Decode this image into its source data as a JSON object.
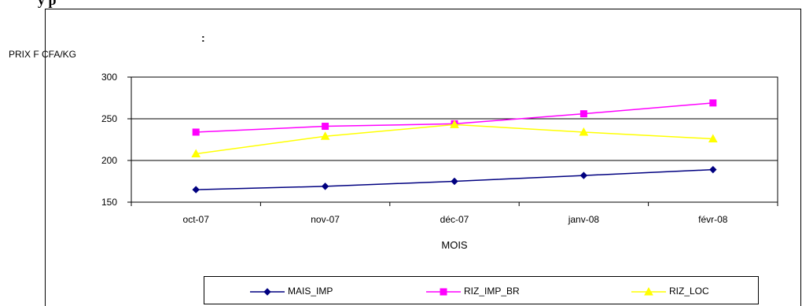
{
  "header": {
    "title_fragment": "y  p",
    "colon": ":"
  },
  "chart_data": {
    "type": "line",
    "categories": [
      "oct-07",
      "nov-07",
      "déc-07",
      "janv-08",
      "févr-08"
    ],
    "ylabel": "PRIX F CFA/KG",
    "xlabel": "MOIS",
    "ylim": [
      150,
      300
    ],
    "yticks": [
      "150",
      "200",
      "250",
      "300"
    ],
    "grid": true,
    "legend_position": "bottom",
    "series": [
      {
        "name": "MAIS_IMP",
        "color": "#000080",
        "marker": "diamond",
        "values": [
          165,
          169,
          175,
          182,
          189
        ]
      },
      {
        "name": "RIZ_IMP_BR",
        "color": "#FF00FF",
        "marker": "square",
        "values": [
          234,
          241,
          244,
          256,
          269
        ]
      },
      {
        "name": "RIZ_LOC",
        "color": "#FFFF00",
        "marker": "triangle",
        "values": [
          208,
          229,
          243,
          234,
          226
        ]
      }
    ]
  }
}
